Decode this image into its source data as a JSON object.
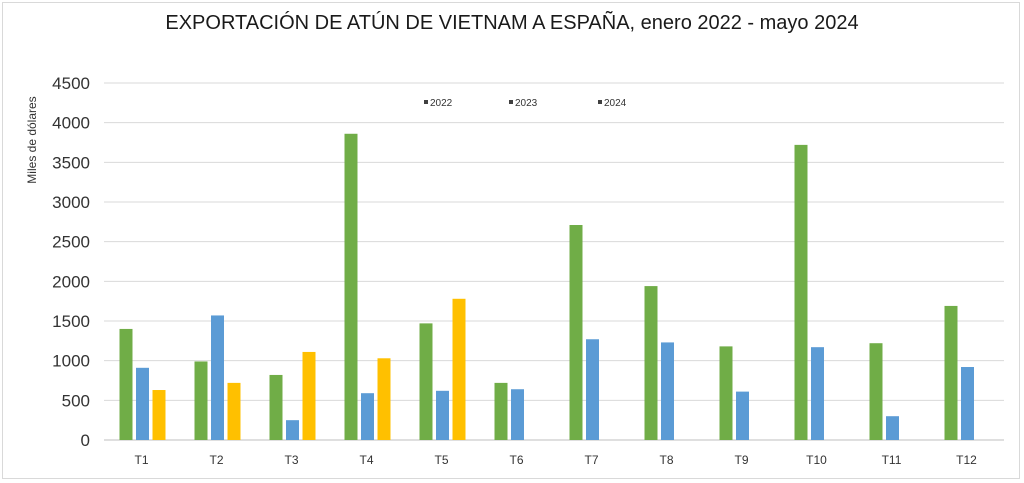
{
  "chart_data": {
    "type": "bar",
    "title": "EXPORTACIÓN DE ATÚN DE VIETNAM A ESPAÑA, enero 2022 - mayo 2024",
    "xlabel": "",
    "ylabel": "Miles de dólares",
    "ylim": [
      0,
      4500
    ],
    "yticks": [
      "0",
      "500",
      "1000",
      "1500",
      "2000",
      "2500",
      "3000",
      "3500",
      "4000",
      "4500"
    ],
    "grid": true,
    "legend_position": "top",
    "categories": [
      "T1",
      "T2",
      "T3",
      "T4",
      "T5",
      "T6",
      "T7",
      "T8",
      "T9",
      "T10",
      "T11",
      "T12"
    ],
    "series": [
      {
        "name": "2022",
        "color": "#70ad47",
        "values": [
          1400,
          990,
          820,
          3860,
          1470,
          720,
          2710,
          1940,
          1180,
          3720,
          1220,
          1690
        ]
      },
      {
        "name": "2023",
        "color": "#5b9bd5",
        "values": [
          910,
          1570,
          250,
          590,
          620,
          640,
          1270,
          1230,
          610,
          1170,
          300,
          920
        ]
      },
      {
        "name": "2024",
        "color": "#ffc000",
        "values": [
          630,
          720,
          1110,
          1030,
          1780,
          null,
          null,
          null,
          null,
          null,
          null,
          null
        ]
      }
    ]
  }
}
